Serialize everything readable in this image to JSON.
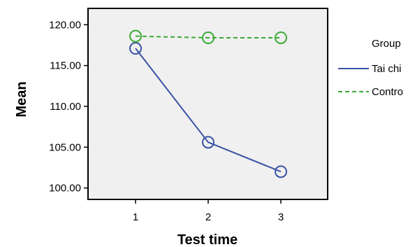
{
  "chart_data": {
    "type": "line",
    "xlabel": "Test time",
    "ylabel": "Mean",
    "categories": [
      "1",
      "2",
      "3"
    ],
    "yticks": [
      "100.00",
      "105.00",
      "110.00",
      "115.00",
      "120.00"
    ],
    "ylim": [
      98.6,
      122.0
    ],
    "grid": false,
    "legend": {
      "title": "Group",
      "placement": "right"
    },
    "series": [
      {
        "name": "Tai chi",
        "values": [
          117.1,
          105.6,
          102.0
        ],
        "color": "#3953a4",
        "dash": "solid",
        "marker": "open-circle"
      },
      {
        "name": "Contro",
        "values": [
          118.6,
          118.4,
          118.4
        ],
        "color": "#3aaa35",
        "dash": "dashed",
        "marker": "open-circle"
      }
    ],
    "plot_background": "#f0f0f0"
  }
}
